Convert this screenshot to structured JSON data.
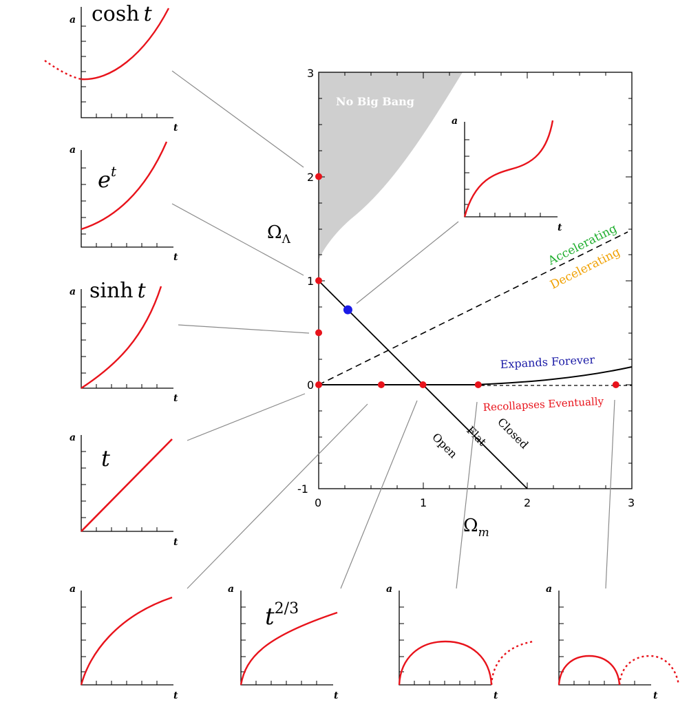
{
  "main_plot": {
    "xlabel": "Ω",
    "xlabel_sub": "m",
    "ylabel": "Ω",
    "ylabel_sub": "Λ",
    "x_ticks": [
      "0",
      "1",
      "2",
      "3"
    ],
    "y_ticks": [
      "-1",
      "0",
      "1",
      "2",
      "3"
    ],
    "xlim": [
      0,
      3
    ],
    "ylim": [
      -1,
      3
    ],
    "region_labels": {
      "no_big_bang": "No Big Bang",
      "accelerating": "Accelerating",
      "decelerating": "Decelerating",
      "expands_forever": "Expands Forever",
      "recollapses_eventually": "Recollapses Eventually",
      "open": "Open",
      "flat": "Flat",
      "closed": "Closed"
    },
    "points": [
      {
        "om": 0,
        "ol": 2,
        "color": "#e8131b"
      },
      {
        "om": 0,
        "ol": 1,
        "color": "#e8131b"
      },
      {
        "om": 0,
        "ol": 0.5,
        "color": "#e8131b"
      },
      {
        "om": 0,
        "ol": 0,
        "color": "#e8131b"
      },
      {
        "om": 0.6,
        "ol": 0,
        "color": "#e8131b"
      },
      {
        "om": 1,
        "ol": 0,
        "color": "#e8131b"
      },
      {
        "om": 1.53,
        "ol": 0,
        "color": "#e8131b"
      },
      {
        "om": 2.85,
        "ol": 0,
        "color": "#e8131b"
      },
      {
        "om": 0.28,
        "ol": 0.72,
        "color": "#1a1ae6"
      }
    ]
  },
  "mini_plots": {
    "axis_y": "a",
    "axis_x": "t",
    "cosh": {
      "label_main": "cosh",
      "label_var": "t"
    },
    "exp": {
      "label_base": "e",
      "label_exp": "t"
    },
    "sinh": {
      "label_main": "sinh",
      "label_var": "t"
    },
    "linear": {
      "label_var": "t"
    },
    "power": {
      "label_base": "t",
      "label_exp": "2/3"
    }
  },
  "colors": {
    "curve": "#e8131b",
    "accelerating": "#1fae2e",
    "decelerating": "#f0a000",
    "expands_forever": "#1a1aa6",
    "recollapses": "#e8131b",
    "no_big_bang_fill": "#cfcfcf"
  }
}
